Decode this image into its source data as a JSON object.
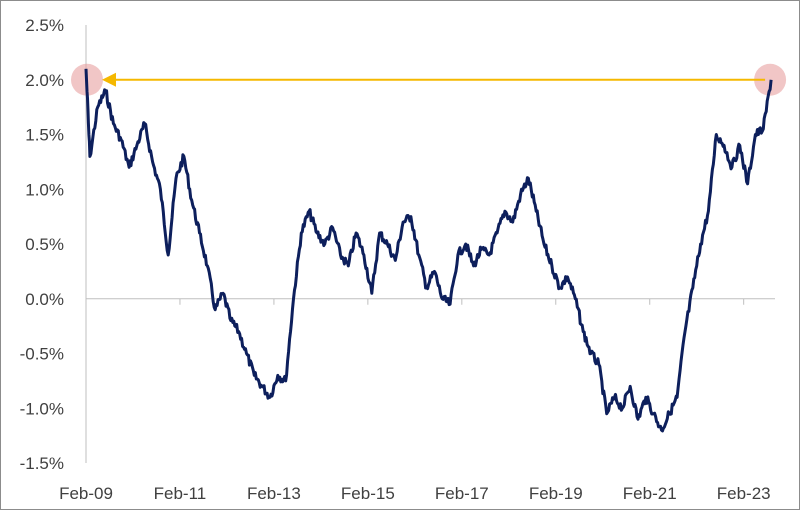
{
  "chart_data": {
    "type": "line",
    "title": "",
    "xlabel": "",
    "ylabel": "",
    "ylim": [
      -1.5,
      2.5
    ],
    "y_ticks": [
      -1.5,
      -1.0,
      -0.5,
      0.0,
      0.5,
      1.0,
      1.5,
      2.0,
      2.5
    ],
    "y_tick_labels": [
      "-1.5%",
      "-1.0%",
      "-0.5%",
      "0.0%",
      "0.5%",
      "1.0%",
      "1.5%",
      "2.0%",
      "2.5%"
    ],
    "x_tick_labels": [
      "Feb-09",
      "Feb-11",
      "Feb-13",
      "Feb-15",
      "Feb-17",
      "Feb-19",
      "Feb-21",
      "Feb-23"
    ],
    "x_tick_dates": [
      "2009-02",
      "2011-02",
      "2013-02",
      "2015-02",
      "2017-02",
      "2019-02",
      "2021-02",
      "2023-02"
    ],
    "xlim": [
      "2009-02",
      "2023-10"
    ],
    "grid": false,
    "legend": "none",
    "colors": {
      "line": "#0d1f5c",
      "axis": "#bfbfbf",
      "arrow": "#f5b800",
      "highlight": "#e8a0a0"
    },
    "series": [
      {
        "x": [
          "2009-02",
          "2009-03",
          "2009-05",
          "2009-07",
          "2009-09",
          "2009-11",
          "2010-01",
          "2010-03",
          "2010-05",
          "2010-07",
          "2010-09",
          "2010-11",
          "2011-01",
          "2011-03",
          "2011-05",
          "2011-07",
          "2011-09",
          "2011-11",
          "2012-01",
          "2012-03",
          "2012-05",
          "2012-07",
          "2012-09",
          "2012-11",
          "2013-01",
          "2013-03",
          "2013-05",
          "2013-07",
          "2013-09",
          "2013-11",
          "2014-01",
          "2014-03",
          "2014-05",
          "2014-07",
          "2014-09",
          "2014-11",
          "2015-01",
          "2015-03",
          "2015-05",
          "2015-07",
          "2015-09",
          "2015-11",
          "2016-01",
          "2016-03",
          "2016-05",
          "2016-07",
          "2016-09",
          "2016-11",
          "2017-01",
          "2017-03",
          "2017-05",
          "2017-07",
          "2017-09",
          "2017-11",
          "2018-01",
          "2018-03",
          "2018-05",
          "2018-07",
          "2018-09",
          "2018-11",
          "2019-01",
          "2019-03",
          "2019-05",
          "2019-07",
          "2019-09",
          "2019-11",
          "2020-01",
          "2020-03",
          "2020-05",
          "2020-07",
          "2020-09",
          "2020-11",
          "2021-01",
          "2021-03",
          "2021-05",
          "2021-07",
          "2021-09",
          "2021-11",
          "2022-01",
          "2022-03",
          "2022-05",
          "2022-07",
          "2022-09",
          "2022-11",
          "2023-01",
          "2023-03",
          "2023-05",
          "2023-07",
          "2023-09"
        ],
        "values": [
          2.1,
          1.3,
          1.75,
          1.9,
          1.6,
          1.45,
          1.2,
          1.4,
          1.6,
          1.25,
          1.0,
          0.4,
          1.1,
          1.3,
          0.9,
          0.6,
          0.3,
          -0.1,
          0.05,
          -0.2,
          -0.3,
          -0.5,
          -0.7,
          -0.8,
          -0.9,
          -0.7,
          -0.75,
          0.0,
          0.6,
          0.8,
          0.6,
          0.5,
          0.65,
          0.4,
          0.3,
          0.6,
          0.4,
          0.05,
          0.6,
          0.5,
          0.35,
          0.7,
          0.75,
          0.4,
          0.1,
          0.25,
          0.0,
          -0.05,
          0.4,
          0.5,
          0.3,
          0.45,
          0.4,
          0.6,
          0.8,
          0.7,
          0.95,
          1.1,
          0.8,
          0.5,
          0.3,
          0.1,
          0.2,
          0.0,
          -0.3,
          -0.5,
          -0.6,
          -1.05,
          -0.9,
          -1.0,
          -0.8,
          -1.1,
          -0.9,
          -1.05,
          -1.2,
          -1.05,
          -0.9,
          -0.3,
          0.1,
          0.5,
          0.8,
          1.5,
          1.4,
          1.2,
          1.4,
          1.05,
          1.5,
          1.55,
          2.0
        ]
      }
    ]
  }
}
